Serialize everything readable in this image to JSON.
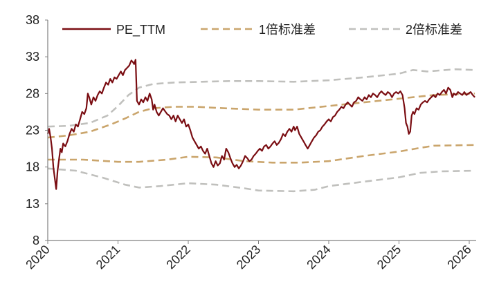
{
  "chart_data": {
    "type": "line",
    "title": "",
    "xlabel": "",
    "ylabel": "",
    "ylim": [
      8,
      38
    ],
    "yticks": [
      8,
      13,
      18,
      23,
      28,
      33,
      38
    ],
    "xlim": [
      2020.0,
      2026.1
    ],
    "xticks": [
      {
        "value": 2020,
        "label": "2020"
      },
      {
        "value": 2021,
        "label": "2021"
      },
      {
        "value": 2022,
        "label": "2022"
      },
      {
        "value": 2023,
        "label": "2023"
      },
      {
        "value": 2024,
        "label": "2024"
      },
      {
        "value": 2025,
        "label": "2025"
      },
      {
        "value": 2026,
        "label": "2026"
      }
    ],
    "legend": [
      {
        "name": "PE_TTM",
        "style": "solid",
        "color": "#7a0d12"
      },
      {
        "name": "1倍标准差",
        "style": "dashed",
        "color": "#caa56c"
      },
      {
        "name": "2倍标准差",
        "style": "dashed",
        "color": "#c0c0bd"
      }
    ],
    "series": [
      {
        "name": "PE_TTM",
        "color": "#7a0d12",
        "style": "solid",
        "points": [
          [
            2020.0,
            22.5
          ],
          [
            2020.02,
            23.2
          ],
          [
            2020.04,
            22.0
          ],
          [
            2020.06,
            20.5
          ],
          [
            2020.08,
            18.0
          ],
          [
            2020.1,
            16.5
          ],
          [
            2020.12,
            15.0
          ],
          [
            2020.14,
            17.5
          ],
          [
            2020.16,
            19.0
          ],
          [
            2020.18,
            20.5
          ],
          [
            2020.2,
            20.0
          ],
          [
            2020.22,
            21.2
          ],
          [
            2020.25,
            20.8
          ],
          [
            2020.28,
            21.5
          ],
          [
            2020.31,
            22.5
          ],
          [
            2020.34,
            23.2
          ],
          [
            2020.37,
            22.8
          ],
          [
            2020.4,
            23.8
          ],
          [
            2020.43,
            23.5
          ],
          [
            2020.46,
            24.5
          ],
          [
            2020.49,
            25.5
          ],
          [
            2020.52,
            25.2
          ],
          [
            2020.55,
            26.0
          ],
          [
            2020.57,
            28.0
          ],
          [
            2020.59,
            27.5
          ],
          [
            2020.62,
            26.5
          ],
          [
            2020.65,
            27.5
          ],
          [
            2020.68,
            27.0
          ],
          [
            2020.71,
            27.8
          ],
          [
            2020.74,
            28.3
          ],
          [
            2020.77,
            28.0
          ],
          [
            2020.8,
            28.8
          ],
          [
            2020.83,
            29.5
          ],
          [
            2020.86,
            29.2
          ],
          [
            2020.89,
            30.0
          ],
          [
            2020.92,
            29.5
          ],
          [
            2020.95,
            30.2
          ],
          [
            2020.98,
            30.0
          ],
          [
            2021.01,
            30.5
          ],
          [
            2021.04,
            31.0
          ],
          [
            2021.07,
            30.5
          ],
          [
            2021.1,
            31.2
          ],
          [
            2021.13,
            31.5
          ],
          [
            2021.16,
            31.8
          ],
          [
            2021.19,
            32.5
          ],
          [
            2021.21,
            32.3
          ],
          [
            2021.23,
            32.0
          ],
          [
            2021.25,
            32.6
          ],
          [
            2021.27,
            27.0
          ],
          [
            2021.3,
            26.5
          ],
          [
            2021.33,
            27.2
          ],
          [
            2021.36,
            26.8
          ],
          [
            2021.39,
            27.5
          ],
          [
            2021.42,
            27.0
          ],
          [
            2021.45,
            28.0
          ],
          [
            2021.48,
            27.2
          ],
          [
            2021.5,
            25.8
          ],
          [
            2021.52,
            26.5
          ],
          [
            2021.55,
            25.5
          ],
          [
            2021.58,
            25.0
          ],
          [
            2021.61,
            25.5
          ],
          [
            2021.64,
            26.0
          ],
          [
            2021.67,
            25.6
          ],
          [
            2021.7,
            25.2
          ],
          [
            2021.73,
            25.0
          ],
          [
            2021.76,
            24.5
          ],
          [
            2021.79,
            25.0
          ],
          [
            2021.82,
            24.2
          ],
          [
            2021.85,
            25.0
          ],
          [
            2021.88,
            24.5
          ],
          [
            2021.91,
            24.0
          ],
          [
            2021.94,
            24.5
          ],
          [
            2021.97,
            23.5
          ],
          [
            2022.0,
            23.8
          ],
          [
            2022.03,
            23.0
          ],
          [
            2022.06,
            22.0
          ],
          [
            2022.09,
            21.5
          ],
          [
            2022.12,
            21.0
          ],
          [
            2022.15,
            20.5
          ],
          [
            2022.18,
            20.8
          ],
          [
            2022.21,
            20.2
          ],
          [
            2022.24,
            19.8
          ],
          [
            2022.27,
            20.5
          ],
          [
            2022.3,
            19.5
          ],
          [
            2022.33,
            18.5
          ],
          [
            2022.36,
            18.0
          ],
          [
            2022.39,
            18.8
          ],
          [
            2022.42,
            18.2
          ],
          [
            2022.45,
            18.5
          ],
          [
            2022.48,
            19.5
          ],
          [
            2022.51,
            19.0
          ],
          [
            2022.54,
            20.5
          ],
          [
            2022.57,
            20.0
          ],
          [
            2022.6,
            19.2
          ],
          [
            2022.63,
            18.5
          ],
          [
            2022.66,
            18.0
          ],
          [
            2022.69,
            18.3
          ],
          [
            2022.72,
            17.8
          ],
          [
            2022.75,
            18.2
          ],
          [
            2022.78,
            18.8
          ],
          [
            2022.81,
            19.5
          ],
          [
            2022.84,
            19.2
          ],
          [
            2022.87,
            18.8
          ],
          [
            2022.9,
            19.0
          ],
          [
            2022.93,
            19.5
          ],
          [
            2022.96,
            19.8
          ],
          [
            2022.99,
            20.2
          ],
          [
            2023.02,
            20.5
          ],
          [
            2023.05,
            20.2
          ],
          [
            2023.08,
            20.8
          ],
          [
            2023.11,
            21.0
          ],
          [
            2023.14,
            20.5
          ],
          [
            2023.17,
            20.8
          ],
          [
            2023.2,
            21.2
          ],
          [
            2023.23,
            21.5
          ],
          [
            2023.26,
            21.0
          ],
          [
            2023.29,
            21.3
          ],
          [
            2023.32,
            21.8
          ],
          [
            2023.35,
            22.5
          ],
          [
            2023.38,
            22.2
          ],
          [
            2023.41,
            22.8
          ],
          [
            2023.44,
            23.2
          ],
          [
            2023.47,
            22.8
          ],
          [
            2023.5,
            23.5
          ],
          [
            2023.52,
            23.0
          ],
          [
            2023.55,
            23.5
          ],
          [
            2023.58,
            22.5
          ],
          [
            2023.61,
            22.0
          ],
          [
            2023.64,
            21.5
          ],
          [
            2023.67,
            21.0
          ],
          [
            2023.7,
            20.5
          ],
          [
            2023.73,
            21.0
          ],
          [
            2023.76,
            21.5
          ],
          [
            2023.79,
            22.0
          ],
          [
            2023.82,
            22.3
          ],
          [
            2023.85,
            22.8
          ],
          [
            2023.88,
            23.0
          ],
          [
            2023.91,
            23.5
          ],
          [
            2023.94,
            23.8
          ],
          [
            2023.97,
            24.2
          ],
          [
            2024.0,
            24.5
          ],
          [
            2024.03,
            24.2
          ],
          [
            2024.06,
            24.8
          ],
          [
            2024.09,
            25.0
          ],
          [
            2024.12,
            25.5
          ],
          [
            2024.15,
            25.8
          ],
          [
            2024.18,
            26.2
          ],
          [
            2024.21,
            26.0
          ],
          [
            2024.24,
            26.5
          ],
          [
            2024.27,
            26.8
          ],
          [
            2024.3,
            26.5
          ],
          [
            2024.33,
            26.2
          ],
          [
            2024.36,
            26.8
          ],
          [
            2024.39,
            27.0
          ],
          [
            2024.42,
            27.5
          ],
          [
            2024.45,
            27.2
          ],
          [
            2024.48,
            27.0
          ],
          [
            2024.51,
            27.5
          ],
          [
            2024.54,
            27.2
          ],
          [
            2024.57,
            27.8
          ],
          [
            2024.6,
            27.5
          ],
          [
            2024.63,
            28.0
          ],
          [
            2024.66,
            27.8
          ],
          [
            2024.69,
            27.5
          ],
          [
            2024.72,
            28.0
          ],
          [
            2024.75,
            28.3
          ],
          [
            2024.78,
            28.0
          ],
          [
            2024.81,
            27.8
          ],
          [
            2024.84,
            28.2
          ],
          [
            2024.87,
            28.0
          ],
          [
            2024.9,
            27.5
          ],
          [
            2024.93,
            28.0
          ],
          [
            2024.96,
            28.2
          ],
          [
            2024.99,
            28.0
          ],
          [
            2025.02,
            28.3
          ],
          [
            2025.05,
            27.8
          ],
          [
            2025.08,
            26.0
          ],
          [
            2025.1,
            24.0
          ],
          [
            2025.12,
            23.5
          ],
          [
            2025.14,
            22.5
          ],
          [
            2025.16,
            22.8
          ],
          [
            2025.18,
            25.0
          ],
          [
            2025.2,
            25.5
          ],
          [
            2025.22,
            25.2
          ],
          [
            2025.25,
            26.0
          ],
          [
            2025.28,
            25.8
          ],
          [
            2025.31,
            26.5
          ],
          [
            2025.34,
            26.8
          ],
          [
            2025.37,
            27.0
          ],
          [
            2025.4,
            26.8
          ],
          [
            2025.43,
            27.2
          ],
          [
            2025.46,
            27.5
          ],
          [
            2025.49,
            27.8
          ],
          [
            2025.52,
            27.5
          ],
          [
            2025.55,
            28.0
          ],
          [
            2025.58,
            27.8
          ],
          [
            2025.61,
            28.2
          ],
          [
            2025.64,
            28.5
          ],
          [
            2025.67,
            28.0
          ],
          [
            2025.7,
            28.8
          ],
          [
            2025.73,
            28.5
          ],
          [
            2025.76,
            27.5
          ],
          [
            2025.78,
            28.0
          ],
          [
            2025.81,
            27.8
          ],
          [
            2025.84,
            28.2
          ],
          [
            2025.87,
            28.0
          ],
          [
            2025.9,
            27.8
          ],
          [
            2025.93,
            28.2
          ],
          [
            2025.96,
            27.8
          ],
          [
            2025.99,
            28.0
          ],
          [
            2026.02,
            28.2
          ],
          [
            2026.05,
            27.8
          ],
          [
            2026.08,
            27.5
          ]
        ]
      },
      {
        "name": "+1倍标准差",
        "color": "#caa56c",
        "style": "dashed",
        "points": [
          [
            2020.0,
            22.0
          ],
          [
            2020.3,
            22.3
          ],
          [
            2020.6,
            22.8
          ],
          [
            2020.9,
            23.8
          ],
          [
            2021.1,
            24.6
          ],
          [
            2021.3,
            25.5
          ],
          [
            2021.5,
            26.0
          ],
          [
            2021.8,
            26.2
          ],
          [
            2022.1,
            26.2
          ],
          [
            2022.5,
            26.0
          ],
          [
            2023.0,
            25.8
          ],
          [
            2023.5,
            25.8
          ],
          [
            2024.0,
            26.3
          ],
          [
            2024.5,
            26.8
          ],
          [
            2025.0,
            27.3
          ],
          [
            2025.5,
            27.8
          ],
          [
            2026.08,
            28.0
          ]
        ]
      },
      {
        "name": "-1倍标准差",
        "color": "#caa56c",
        "style": "dashed",
        "points": [
          [
            2020.0,
            19.0
          ],
          [
            2020.5,
            19.0
          ],
          [
            2021.0,
            18.7
          ],
          [
            2021.3,
            18.7
          ],
          [
            2021.7,
            19.0
          ],
          [
            2022.0,
            19.4
          ],
          [
            2022.4,
            19.3
          ],
          [
            2022.8,
            18.8
          ],
          [
            2023.2,
            18.6
          ],
          [
            2023.6,
            18.6
          ],
          [
            2024.0,
            18.8
          ],
          [
            2024.5,
            19.5
          ],
          [
            2025.0,
            20.1
          ],
          [
            2025.3,
            20.6
          ],
          [
            2025.5,
            20.9
          ],
          [
            2026.08,
            21.0
          ]
        ]
      },
      {
        "name": "+2倍标准差",
        "color": "#c0c0bd",
        "style": "dashed",
        "points": [
          [
            2020.0,
            23.5
          ],
          [
            2020.3,
            23.6
          ],
          [
            2020.6,
            24.0
          ],
          [
            2020.85,
            25.0
          ],
          [
            2021.0,
            26.3
          ],
          [
            2021.15,
            27.8
          ],
          [
            2021.3,
            28.8
          ],
          [
            2021.5,
            29.3
          ],
          [
            2021.8,
            29.5
          ],
          [
            2022.2,
            29.6
          ],
          [
            2022.6,
            29.7
          ],
          [
            2023.0,
            29.7
          ],
          [
            2023.5,
            29.6
          ],
          [
            2024.0,
            29.8
          ],
          [
            2024.5,
            30.2
          ],
          [
            2025.0,
            30.7
          ],
          [
            2025.2,
            31.2
          ],
          [
            2025.4,
            31.0
          ],
          [
            2025.8,
            31.3
          ],
          [
            2026.08,
            31.2
          ]
        ]
      },
      {
        "name": "-2倍标准差",
        "color": "#c0c0bd",
        "style": "dashed",
        "points": [
          [
            2020.0,
            17.8
          ],
          [
            2020.4,
            17.5
          ],
          [
            2020.8,
            16.5
          ],
          [
            2021.1,
            15.6
          ],
          [
            2021.3,
            15.2
          ],
          [
            2021.6,
            15.4
          ],
          [
            2022.0,
            15.8
          ],
          [
            2022.4,
            15.6
          ],
          [
            2022.8,
            15.1
          ],
          [
            2023.0,
            14.8
          ],
          [
            2023.5,
            14.7
          ],
          [
            2023.8,
            14.9
          ],
          [
            2024.0,
            15.4
          ],
          [
            2024.5,
            16.0
          ],
          [
            2025.0,
            16.6
          ],
          [
            2025.3,
            17.2
          ],
          [
            2025.6,
            17.4
          ],
          [
            2026.08,
            17.5
          ]
        ]
      }
    ]
  }
}
